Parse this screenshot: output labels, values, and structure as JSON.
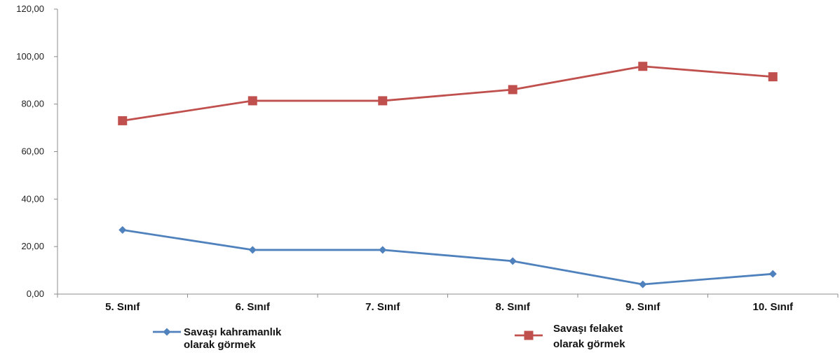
{
  "chart_data": {
    "type": "line",
    "categories": [
      "5. Sınıf",
      "6. Sınıf",
      "7. Sınıf",
      "8. Sınıf",
      "9. Sınıf",
      "10. Sınıf"
    ],
    "series": [
      {
        "name_lines": [
          "Savaşı kahramanlık",
          "olarak görmek"
        ],
        "color": "#4F81BD",
        "marker": "diamond",
        "values": [
          27.0,
          18.6,
          18.6,
          13.9,
          4.1,
          8.5
        ]
      },
      {
        "name_lines": [
          "Savaşı felaket",
          "olarak görmek"
        ],
        "color": "#C0504D",
        "marker": "square",
        "values": [
          73.0,
          81.4,
          81.4,
          86.1,
          95.9,
          91.5
        ]
      }
    ],
    "y_ticks": [
      "0,00",
      "20,00",
      "40,00",
      "60,00",
      "80,00",
      "100,00",
      "120,00"
    ],
    "ylim": [
      0,
      120
    ],
    "grid": false,
    "legend_position": "bottom"
  }
}
